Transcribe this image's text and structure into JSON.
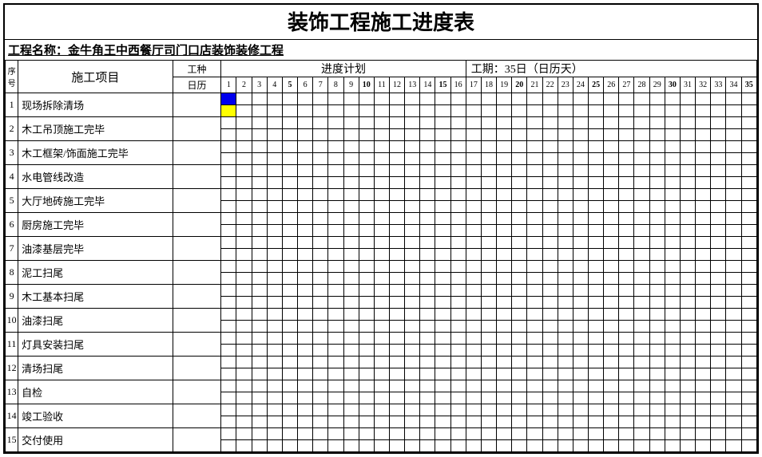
{
  "title": "装饰工程施工进度表",
  "project_label": "工程名称：",
  "project_name": "金牛角王中西餐厅司门口店装饰装修工程",
  "header": {
    "seq": "序号",
    "item": "施工项目",
    "type": "工种",
    "calendar": "日历",
    "plan": "进度计划",
    "duration_label": "工期：",
    "duration_value": "35日（日历天）"
  },
  "days": [
    "1",
    "2",
    "3",
    "4",
    "5",
    "6",
    "7",
    "8",
    "9",
    "10",
    "11",
    "12",
    "13",
    "14",
    "15",
    "16",
    "17",
    "18",
    "19",
    "20",
    "21",
    "22",
    "23",
    "24",
    "25",
    "26",
    "27",
    "28",
    "29",
    "30",
    "31",
    "32",
    "33",
    "34",
    "35"
  ],
  "bold_days": [
    5,
    10,
    15,
    20,
    25,
    30,
    35
  ],
  "rows": [
    {
      "n": "1",
      "name": "现场拆除清场",
      "bars": [
        {
          "day": 1,
          "half": "top",
          "color": "blue"
        },
        {
          "day": 1,
          "half": "bottom",
          "color": "yellow"
        }
      ]
    },
    {
      "n": "2",
      "name": "木工吊顶施工完毕",
      "bars": []
    },
    {
      "n": "3",
      "name": "木工框架/饰面施工完毕",
      "bars": []
    },
    {
      "n": "4",
      "name": "水电管线改造",
      "bars": []
    },
    {
      "n": "5",
      "name": "大厅地砖施工完毕",
      "bars": []
    },
    {
      "n": "6",
      "name": "厨房施工完毕",
      "bars": []
    },
    {
      "n": "7",
      "name": "油漆基层完毕",
      "bars": []
    },
    {
      "n": "8",
      "name": "泥工扫尾",
      "bars": []
    },
    {
      "n": "9",
      "name": "木工基本扫尾",
      "bars": []
    },
    {
      "n": "10",
      "name": "油漆扫尾",
      "bars": []
    },
    {
      "n": "11",
      "name": "灯具安装扫尾",
      "bars": []
    },
    {
      "n": "12",
      "name": "清场扫尾",
      "bars": []
    },
    {
      "n": "13",
      "name": "自检",
      "bars": []
    },
    {
      "n": "14",
      "name": "竣工验收",
      "bars": []
    },
    {
      "n": "15",
      "name": "交付使用",
      "bars": []
    }
  ],
  "colors": {
    "blue": "#0000ee",
    "yellow": "#ffff00",
    "border": "#000000",
    "bg": "#ffffff"
  }
}
